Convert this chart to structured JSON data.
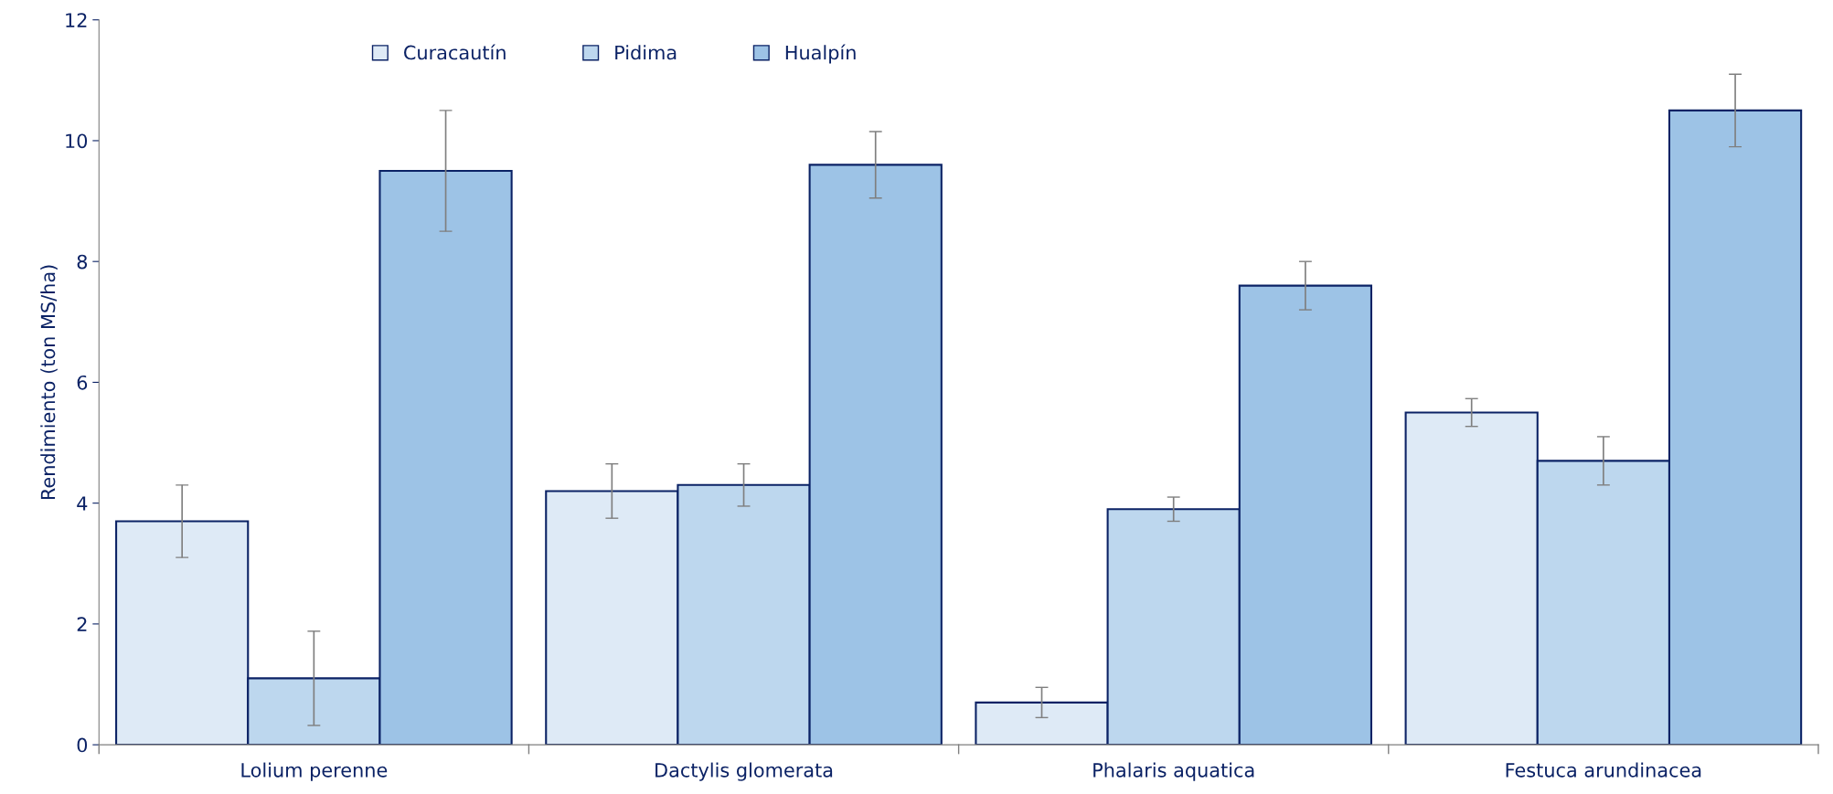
{
  "chart_data": {
    "type": "bar",
    "ylabel": "Rendimiento (ton MS/ha)",
    "categories": [
      "Lolium perenne",
      "Dactylis glomerata",
      "Phalaris aquatica",
      "Festuca arundinacea"
    ],
    "series": [
      {
        "name": "Curacautín",
        "color": "#deeaf6",
        "values": [
          3.7,
          4.2,
          0.7,
          5.5
        ],
        "errors": [
          0.6,
          0.45,
          0.25,
          0.23
        ]
      },
      {
        "name": "Pidima",
        "color": "#bdd7ee",
        "values": [
          1.1,
          4.3,
          3.9,
          4.7
        ],
        "errors": [
          0.78,
          0.35,
          0.2,
          0.4
        ]
      },
      {
        "name": "Hualpín",
        "color": "#9dc3e6",
        "values": [
          9.5,
          9.6,
          7.6,
          10.5
        ],
        "errors": [
          1.0,
          0.55,
          0.4,
          0.6
        ]
      }
    ],
    "ylim": [
      0,
      12
    ],
    "yticks": [
      0,
      2,
      4,
      6,
      8,
      10,
      12
    ],
    "grid": false,
    "legend": "top"
  }
}
